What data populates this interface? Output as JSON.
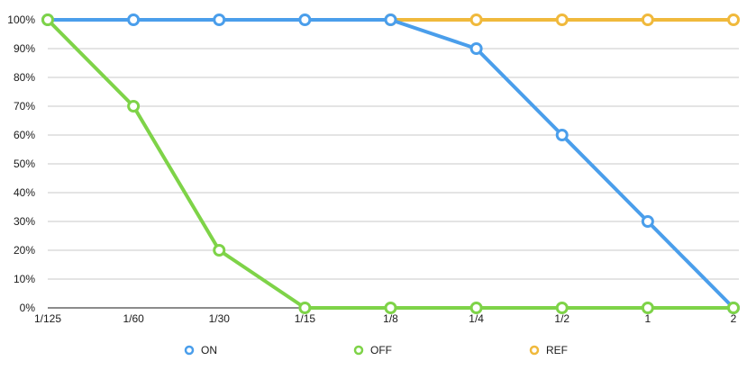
{
  "chart_data": {
    "type": "line",
    "title": "",
    "xlabel": "",
    "ylabel": "",
    "categories": [
      "1/125",
      "1/60",
      "1/30",
      "1/15",
      "1/8",
      "1/4",
      "1/2",
      "1",
      "2"
    ],
    "y_ticks": [
      "0%",
      "10%",
      "20%",
      "30%",
      "40%",
      "50%",
      "60%",
      "70%",
      "80%",
      "90%",
      "100%"
    ],
    "ylim": [
      0,
      100
    ],
    "y_unit": "%",
    "grid": true,
    "legend_position": "bottom",
    "series": [
      {
        "name": "ON",
        "color": "#4A9EEB",
        "values": [
          100,
          100,
          100,
          100,
          100,
          90,
          60,
          30,
          0
        ]
      },
      {
        "name": "OFF",
        "color": "#7ED348",
        "values": [
          100,
          70,
          20,
          0,
          0,
          0,
          0,
          0,
          0
        ]
      },
      {
        "name": "REF",
        "color": "#F0B93C",
        "values": [
          null,
          null,
          null,
          null,
          100,
          100,
          100,
          100,
          100
        ]
      }
    ],
    "draw_order": [
      "REF",
      "ON",
      "OFF"
    ]
  }
}
